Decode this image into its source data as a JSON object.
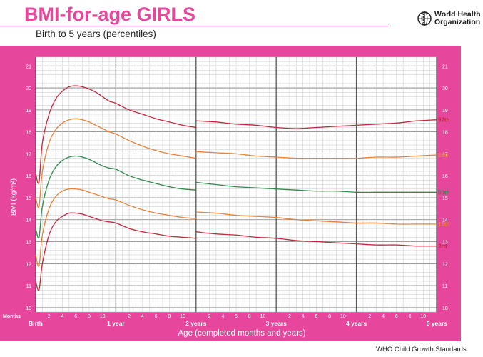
{
  "header": {
    "title": "BMI-for-age GIRLS",
    "subtitle": "Birth to 5 years (percentiles)",
    "organization_line1": "World Health",
    "organization_line2": "Organization",
    "logo_icon": "who-emblem-icon"
  },
  "footer": {
    "text": "WHO Child Growth Standards"
  },
  "colors": {
    "brand_pink": "#e6479c",
    "grid_major": "#777777",
    "grid_minor": "#c8c8c8",
    "percentile_97": "#c6283c",
    "percentile_85": "#e8823a",
    "percentile_50": "#2f8a4a",
    "percentile_15": "#e8823a",
    "percentile_3": "#c6283c"
  },
  "chart_data": {
    "type": "line",
    "title": "BMI-for-age GIRLS",
    "subtitle": "Birth to 5 years (percentiles)",
    "xlabel": "Age (completed months and years)",
    "ylabel": "BMI (kg/m²)",
    "x_units": "months",
    "xlim": [
      0,
      60
    ],
    "ylim": [
      9.8,
      21.4
    ],
    "grid": true,
    "x_prefix_label": "Months",
    "x_year_ticks": [
      {
        "month": 0,
        "label": "Birth"
      },
      {
        "month": 12,
        "label": "1 year"
      },
      {
        "month": 24,
        "label": "2 years"
      },
      {
        "month": 36,
        "label": "3 years"
      },
      {
        "month": 48,
        "label": "4 years"
      },
      {
        "month": 60,
        "label": "5 years"
      }
    ],
    "x_month_tick_labels": [
      "2",
      "4",
      "6",
      "8",
      "10"
    ],
    "y_ticks": [
      10,
      11,
      12,
      13,
      14,
      15,
      16,
      17,
      18,
      19,
      20,
      21
    ],
    "discontinuity_month": 24,
    "series": [
      {
        "name": "97th",
        "color": "#c6283c",
        "x": [
          0,
          0.5,
          1,
          2,
          3,
          4,
          5,
          6,
          7,
          8,
          9,
          10,
          11,
          12,
          14,
          16,
          18,
          20,
          22,
          24
        ],
        "y": [
          16.1,
          15.7,
          17.5,
          18.8,
          19.5,
          19.85,
          20.05,
          20.1,
          20.05,
          19.95,
          19.8,
          19.6,
          19.4,
          19.3,
          19.0,
          18.8,
          18.6,
          18.45,
          18.3,
          18.2
        ],
        "x2": [
          24,
          27,
          30,
          33,
          36,
          39,
          42,
          45,
          48,
          51,
          54,
          57,
          60
        ],
        "y2": [
          18.5,
          18.45,
          18.35,
          18.3,
          18.2,
          18.15,
          18.2,
          18.25,
          18.3,
          18.35,
          18.4,
          18.5,
          18.55
        ]
      },
      {
        "name": "85th",
        "color": "#e8823a",
        "x": [
          0,
          0.5,
          1,
          2,
          3,
          4,
          5,
          6,
          7,
          8,
          9,
          10,
          11,
          12,
          14,
          16,
          18,
          20,
          22,
          24
        ],
        "y": [
          15.0,
          14.6,
          16.2,
          17.5,
          18.1,
          18.4,
          18.55,
          18.6,
          18.55,
          18.45,
          18.3,
          18.15,
          18.0,
          17.9,
          17.6,
          17.35,
          17.15,
          17.0,
          16.9,
          16.8
        ],
        "x2": [
          24,
          27,
          30,
          33,
          36,
          39,
          42,
          45,
          48,
          51,
          54,
          57,
          60
        ],
        "y2": [
          17.1,
          17.05,
          17.0,
          16.9,
          16.85,
          16.8,
          16.8,
          16.8,
          16.8,
          16.85,
          16.85,
          16.9,
          16.95
        ]
      },
      {
        "name": "50th",
        "color": "#2f8a4a",
        "x": [
          0,
          0.5,
          1,
          2,
          3,
          4,
          5,
          6,
          7,
          8,
          9,
          10,
          11,
          12,
          14,
          16,
          18,
          20,
          22,
          24
        ],
        "y": [
          13.6,
          13.2,
          14.6,
          15.8,
          16.4,
          16.7,
          16.85,
          16.9,
          16.85,
          16.75,
          16.6,
          16.45,
          16.35,
          16.3,
          16.0,
          15.8,
          15.65,
          15.5,
          15.4,
          15.35
        ],
        "x2": [
          24,
          27,
          30,
          33,
          36,
          39,
          42,
          45,
          48,
          51,
          54,
          57,
          60
        ],
        "y2": [
          15.7,
          15.6,
          15.5,
          15.45,
          15.4,
          15.35,
          15.3,
          15.3,
          15.25,
          15.25,
          15.25,
          15.25,
          15.25
        ]
      },
      {
        "name": "15th",
        "color": "#e8823a",
        "x": [
          0,
          0.5,
          1,
          2,
          3,
          4,
          5,
          6,
          7,
          8,
          9,
          10,
          11,
          12,
          14,
          16,
          18,
          20,
          22,
          24
        ],
        "y": [
          12.4,
          11.9,
          13.3,
          14.5,
          15.05,
          15.3,
          15.4,
          15.4,
          15.35,
          15.25,
          15.15,
          15.05,
          14.95,
          14.9,
          14.65,
          14.45,
          14.3,
          14.2,
          14.1,
          14.05
        ],
        "x2": [
          24,
          27,
          30,
          33,
          36,
          39,
          42,
          45,
          48,
          51,
          54,
          57,
          60
        ],
        "y2": [
          14.35,
          14.3,
          14.2,
          14.15,
          14.1,
          14.0,
          13.95,
          13.9,
          13.85,
          13.85,
          13.8,
          13.8,
          13.8
        ]
      },
      {
        "name": "3rd",
        "color": "#c6283c",
        "x": [
          0,
          0.5,
          1,
          2,
          3,
          4,
          5,
          6,
          7,
          8,
          9,
          10,
          11,
          12,
          14,
          16,
          18,
          20,
          22,
          24
        ],
        "y": [
          11.2,
          10.8,
          12.0,
          13.3,
          13.9,
          14.15,
          14.3,
          14.3,
          14.25,
          14.15,
          14.05,
          13.95,
          13.9,
          13.85,
          13.6,
          13.45,
          13.35,
          13.25,
          13.2,
          13.15
        ],
        "x2": [
          24,
          27,
          30,
          33,
          36,
          39,
          42,
          45,
          48,
          51,
          54,
          57,
          60
        ],
        "y2": [
          13.45,
          13.35,
          13.3,
          13.2,
          13.15,
          13.05,
          13.0,
          12.95,
          12.9,
          12.85,
          12.85,
          12.8,
          12.8
        ]
      }
    ]
  }
}
